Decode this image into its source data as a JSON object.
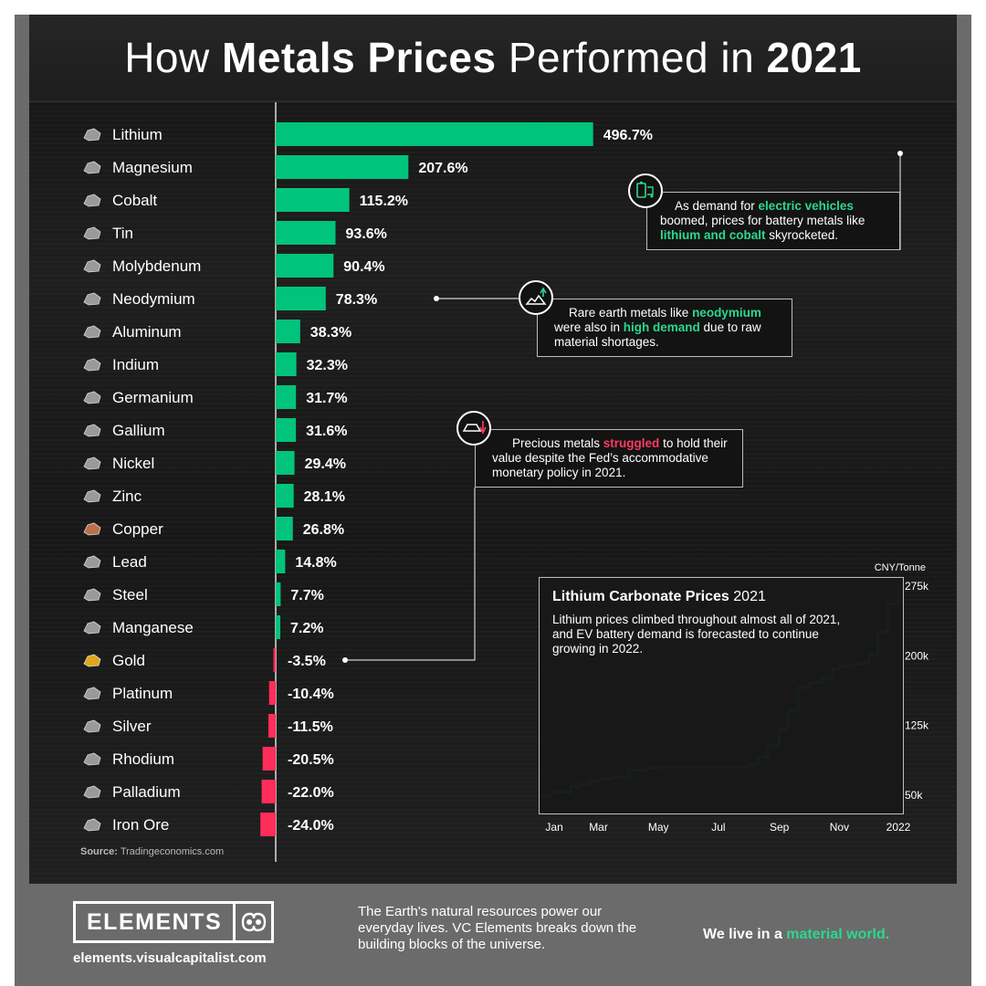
{
  "title": {
    "prefix": "How",
    "bold1": "Metals Prices",
    "middle": "Performed in",
    "bold2": "2021"
  },
  "colors": {
    "positive": "#00c47c",
    "negative": "#ff2d5a",
    "accent_text": "#2ad88f",
    "background": "#1a1a1a"
  },
  "chart_data": [
    {
      "type": "bar",
      "orientation": "horizontal",
      "unit": "%",
      "categories": [
        "Lithium",
        "Magnesium",
        "Cobalt",
        "Tin",
        "Molybdenum",
        "Neodymium",
        "Aluminum",
        "Indium",
        "Germanium",
        "Gallium",
        "Nickel",
        "Zinc",
        "Copper",
        "Lead",
        "Steel",
        "Manganese",
        "Gold",
        "Platinum",
        "Silver",
        "Rhodium",
        "Palladium",
        "Iron Ore"
      ],
      "values": [
        496.7,
        207.6,
        115.2,
        93.6,
        90.4,
        78.3,
        38.3,
        32.3,
        31.7,
        31.6,
        29.4,
        28.1,
        26.8,
        14.8,
        7.7,
        7.2,
        -3.5,
        -10.4,
        -11.5,
        -20.5,
        -22.0,
        -24.0
      ],
      "labels": [
        "496.7%",
        "207.6%",
        "115.2%",
        "93.6%",
        "90.4%",
        "78.3%",
        "38.3%",
        "32.3%",
        "31.7%",
        "31.6%",
        "29.4%",
        "28.1%",
        "26.8%",
        "14.8%",
        "7.7%",
        "7.2%",
        "-3.5%",
        "-10.4%",
        "-11.5%",
        "-20.5%",
        "-22.0%",
        "-24.0%"
      ],
      "xlim": [
        -24.0,
        496.7
      ]
    },
    {
      "type": "line",
      "title": "Lithium Carbonate Prices",
      "title_year": "2021",
      "ylabel": "CNY/Tonne",
      "x_ticks": [
        "Jan",
        "Mar",
        "May",
        "Jul",
        "Sep",
        "Nov",
        "2022"
      ],
      "y_ticks": [
        "50k",
        "125k",
        "200k",
        "275k"
      ],
      "y_tick_values": [
        50000,
        125000,
        200000,
        275000
      ],
      "ylim": [
        45000,
        280000
      ],
      "x": [
        "2021-01-01",
        "2021-01-12",
        "2021-01-20",
        "2021-02-01",
        "2021-02-10",
        "2021-02-20",
        "2021-03-01",
        "2021-03-15",
        "2021-04-01",
        "2021-04-20",
        "2021-05-01",
        "2021-06-01",
        "2021-07-01",
        "2021-07-20",
        "2021-08-01",
        "2021-08-10",
        "2021-08-20",
        "2021-09-01",
        "2021-09-10",
        "2021-09-20",
        "2021-10-01",
        "2021-10-15",
        "2021-10-25",
        "2021-11-01",
        "2021-11-15",
        "2021-11-25",
        "2021-12-01",
        "2021-12-10",
        "2021-12-20",
        "2021-12-31"
      ],
      "y": [
        48000,
        52000,
        52000,
        58000,
        61000,
        64000,
        66000,
        68000,
        76000,
        78000,
        79000,
        79000,
        79000,
        79000,
        82000,
        90000,
        102000,
        120000,
        140000,
        165000,
        170000,
        175000,
        185000,
        188000,
        190000,
        192000,
        200000,
        225000,
        255000,
        277000
      ]
    }
  ],
  "callouts": {
    "ev": {
      "pre": "As demand for ",
      "hl1": "electric vehicles",
      "mid": " boomed, prices for battery metals like ",
      "hl2": "lithium and cobalt",
      "post": " skyrocketed."
    },
    "rare": {
      "pre": "Rare earth metals like ",
      "hl1": "neodymium",
      "mid": " were also in ",
      "hl2": "high demand",
      "post": " due to raw material shortages."
    },
    "precious": {
      "pre": "Precious metals ",
      "hl1": "struggled",
      "post": " to hold their value despite the Fed’s accommodative monetary policy in 2021."
    }
  },
  "lithium_box": {
    "desc": "Lithium prices climbed throughout almost all of 2021, and EV battery demand is forecasted to continue growing in 2022."
  },
  "source": {
    "label": "Source:",
    "value": "Tradingeconomics.com"
  },
  "footer": {
    "logo_word": "ELEMENTS",
    "url": "elements.visualcapitalist.com",
    "text": "The Earth's natural resources power our everyday lives. VC Elements breaks down the building blocks of the universe.",
    "tag_pre": "We live in a ",
    "tag_hl": "material world."
  },
  "icons": {
    "metal_thumbnail": "metal-icon",
    "ev_callout": "battery-car-icon",
    "rare_callout": "ore-pile-icon",
    "precious_callout": "gold-bar-icon",
    "logo_mark": "elements-logo-icon"
  }
}
